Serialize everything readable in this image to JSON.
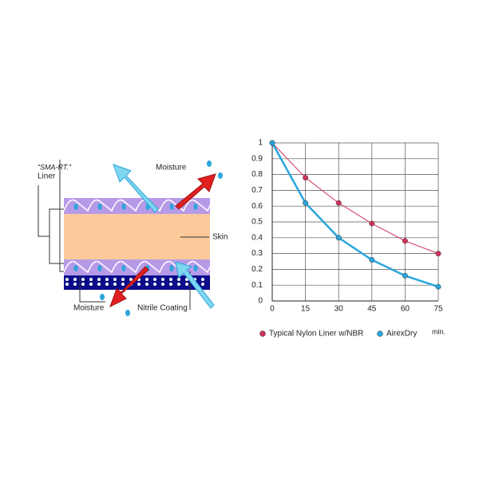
{
  "diagram": {
    "labels": [
      "“SMA-RT.”",
      "Liner",
      "Moisture",
      "Skin",
      "Moisture",
      "Nitrile Coating"
    ]
  },
  "chart_data": {
    "type": "line",
    "x": [
      0,
      15,
      30,
      45,
      60,
      75
    ],
    "xlim": [
      0,
      75
    ],
    "xticks": [
      0,
      15,
      30,
      45,
      60,
      75
    ],
    "x_label": "min.",
    "ylim": [
      0,
      1
    ],
    "yticks": [
      0,
      0.1,
      0.2,
      0.3,
      0.4,
      0.5,
      0.6,
      0.7,
      0.8,
      0.9,
      1
    ],
    "grid": true,
    "series": [
      {
        "name": "Typical Nylon Liner w/NBR",
        "color": "#d0305a",
        "values": [
          1,
          0.78,
          0.62,
          0.49,
          0.38,
          0.3
        ]
      },
      {
        "name": "AirexDry",
        "color": "#2aa6dc",
        "values": [
          1,
          0.62,
          0.4,
          0.26,
          0.16,
          0.09
        ]
      }
    ]
  }
}
